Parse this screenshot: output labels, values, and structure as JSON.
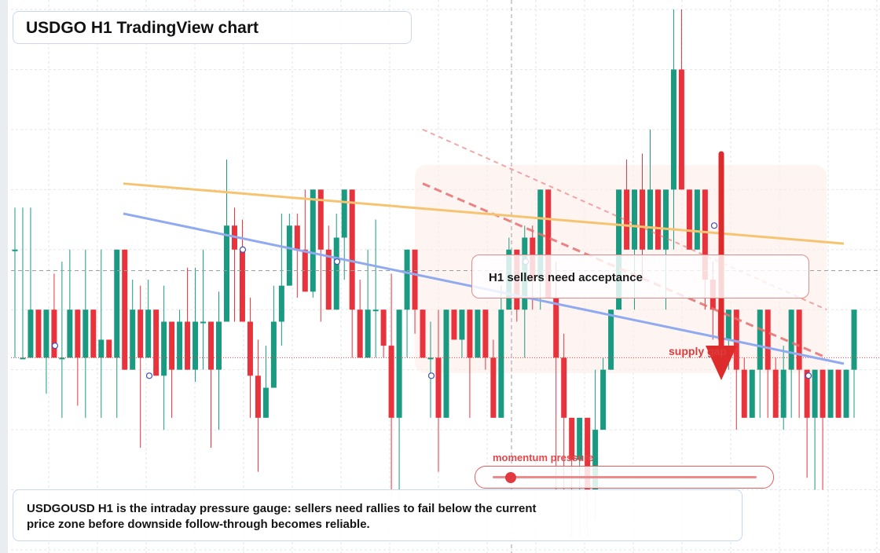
{
  "title": "USDGO H1 TradingView chart",
  "annotations": {
    "acceptance": "H1 sellers need acceptance",
    "supply": "supply gap",
    "momentum_label": "momentum pressure",
    "momentum_level": 0.07,
    "summary": "USDGOUSD H1 is the intraday pressure gauge: sellers need rallies to fail below the current price zone before downside follow-through becomes reliable."
  },
  "colors": {
    "up": "#1a9a80",
    "down": "#e8323c",
    "ma_fast": "#f6c471",
    "ma_slow": "#90aaf0",
    "resistance": "#e86f6f",
    "arrow": "#dd2a2a"
  },
  "chart_data": {
    "type": "candlestick",
    "title": "USDGO H1 TradingView chart",
    "note": "",
    "y_ticks": [],
    "ylim": [
      0,
      9
    ],
    "candles": [
      [
        5.0,
        5.0,
        3.2,
        5.7
      ],
      [
        3.2,
        3.2,
        3.2,
        5.7
      ],
      [
        3.2,
        4.0,
        3.2,
        5.7
      ],
      [
        4.0,
        3.2,
        3.2,
        4.0
      ],
      [
        3.2,
        4.0,
        2.6,
        4.0
      ],
      [
        4.0,
        3.2,
        3.2,
        4.6
      ],
      [
        3.2,
        3.2,
        2.2,
        4.8
      ],
      [
        3.2,
        4.0,
        3.2,
        5.0
      ],
      [
        4.0,
        3.2,
        2.4,
        4.0
      ],
      [
        3.2,
        4.0,
        2.2,
        5.0
      ],
      [
        4.0,
        3.2,
        3.2,
        4.0
      ],
      [
        3.2,
        3.5,
        2.2,
        5.0
      ],
      [
        3.5,
        3.2,
        3.2,
        3.5
      ],
      [
        3.2,
        5.0,
        2.2,
        5.0
      ],
      [
        5.0,
        3.0,
        3.0,
        5.0
      ],
      [
        3.0,
        4.0,
        3.0,
        4.5
      ],
      [
        4.0,
        3.2,
        1.7,
        4.4
      ],
      [
        3.2,
        4.0,
        3.2,
        4.5
      ],
      [
        4.0,
        2.9,
        2.9,
        4.0
      ],
      [
        2.9,
        3.8,
        2.0,
        4.4
      ],
      [
        3.8,
        3.0,
        2.2,
        3.8
      ],
      [
        3.0,
        3.8,
        3.0,
        4.0
      ],
      [
        3.8,
        3.0,
        3.0,
        4.7
      ],
      [
        3.0,
        3.8,
        2.8,
        4.7
      ],
      [
        3.8,
        3.8,
        3.0,
        5.0
      ],
      [
        3.8,
        3.0,
        1.7,
        3.8
      ],
      [
        3.0,
        3.8,
        2.0,
        4.3
      ],
      [
        3.8,
        5.4,
        3.8,
        6.5
      ],
      [
        5.4,
        5.0,
        3.8,
        5.7
      ],
      [
        5.0,
        3.8,
        3.8,
        5.5
      ],
      [
        3.8,
        2.9,
        2.2,
        4.2
      ],
      [
        2.9,
        2.2,
        1.3,
        3.5
      ],
      [
        2.2,
        2.7,
        2.2,
        3.4
      ],
      [
        2.7,
        3.8,
        2.7,
        4.4
      ],
      [
        3.8,
        4.4,
        3.4,
        5.6
      ],
      [
        4.4,
        5.4,
        4.4,
        5.6
      ],
      [
        5.4,
        5.0,
        4.2,
        5.6
      ],
      [
        5.0,
        4.3,
        4.3,
        6.0
      ],
      [
        4.3,
        6.0,
        4.2,
        6.0
      ],
      [
        6.0,
        5.0,
        3.8,
        6.0
      ],
      [
        5.0,
        4.0,
        4.0,
        5.4
      ],
      [
        4.0,
        5.2,
        4.0,
        5.6
      ],
      [
        5.2,
        6.0,
        4.5,
        6.0
      ],
      [
        6.0,
        4.0,
        3.2,
        6.0
      ],
      [
        4.0,
        3.2,
        3.2,
        4.5
      ],
      [
        3.2,
        4.0,
        3.2,
        5.0
      ],
      [
        4.0,
        4.0,
        3.2,
        5.5
      ],
      [
        4.0,
        3.4,
        3.2,
        4.0
      ],
      [
        3.4,
        2.2,
        0.9,
        4.6
      ],
      [
        2.2,
        4.0,
        0.7,
        4.0
      ],
      [
        4.0,
        5.0,
        3.2,
        5.0
      ],
      [
        5.0,
        4.0,
        3.6,
        5.0
      ],
      [
        4.0,
        3.2,
        3.2,
        4.0
      ],
      [
        3.2,
        3.2,
        2.2,
        3.8
      ],
      [
        3.2,
        2.2,
        1.3,
        4.0
      ],
      [
        2.2,
        4.0,
        2.2,
        4.0
      ],
      [
        4.0,
        3.5,
        3.5,
        4.0
      ],
      [
        3.5,
        4.0,
        3.2,
        4.0
      ],
      [
        4.0,
        3.2,
        2.2,
        4.0
      ],
      [
        3.2,
        4.0,
        3.2,
        4.0
      ],
      [
        4.0,
        3.2,
        3.0,
        4.0
      ],
      [
        3.2,
        2.2,
        2.2,
        3.5
      ],
      [
        2.2,
        4.0,
        2.2,
        4.4
      ],
      [
        4.0,
        5.0,
        4.0,
        5.2
      ],
      [
        5.0,
        4.0,
        3.8,
        5.0
      ],
      [
        4.0,
        5.2,
        3.2,
        5.4
      ],
      [
        5.2,
        4.5,
        4.0,
        5.4
      ],
      [
        4.5,
        6.0,
        4.0,
        6.0
      ],
      [
        6.0,
        4.2,
        4.2,
        6.0
      ],
      [
        4.2,
        3.2,
        1.0,
        4.8
      ],
      [
        3.2,
        2.2,
        1.0,
        3.6
      ],
      [
        2.2,
        1.5,
        0.2,
        2.2
      ],
      [
        1.5,
        2.2,
        0.2,
        2.2
      ],
      [
        2.2,
        1.0,
        0.2,
        2.2
      ],
      [
        1.0,
        2.0,
        0.5,
        3.0
      ],
      [
        2.0,
        3.0,
        2.0,
        3.2
      ],
      [
        3.0,
        4.0,
        3.0,
        4.0
      ],
      [
        4.0,
        6.0,
        4.0,
        6.0
      ],
      [
        6.0,
        5.0,
        5.0,
        6.5
      ],
      [
        5.0,
        6.0,
        4.0,
        6.0
      ],
      [
        6.0,
        5.0,
        4.5,
        6.6
      ],
      [
        5.0,
        6.0,
        5.0,
        7.0
      ],
      [
        6.0,
        5.0,
        5.0,
        6.0
      ],
      [
        5.0,
        6.0,
        4.0,
        6.0
      ],
      [
        6.0,
        8.0,
        5.0,
        9.0
      ],
      [
        8.0,
        6.0,
        6.0,
        9.0
      ],
      [
        6.0,
        5.0,
        5.0,
        6.0
      ],
      [
        5.0,
        6.0,
        5.0,
        6.0
      ],
      [
        6.0,
        4.5,
        4.0,
        6.0
      ],
      [
        4.5,
        4.0,
        3.5,
        4.8
      ],
      [
        4.0,
        3.5,
        3.0,
        4.0
      ],
      [
        3.5,
        4.0,
        3.0,
        4.0
      ],
      [
        4.0,
        3.0,
        2.0,
        4.0
      ],
      [
        3.0,
        2.2,
        2.2,
        3.2
      ],
      [
        2.2,
        3.0,
        2.2,
        3.0
      ],
      [
        3.0,
        4.0,
        2.2,
        4.0
      ],
      [
        4.0,
        3.0,
        2.2,
        4.0
      ],
      [
        3.0,
        2.2,
        2.2,
        3.2
      ],
      [
        2.2,
        3.0,
        2.0,
        3.4
      ],
      [
        3.0,
        4.0,
        2.2,
        4.0
      ],
      [
        4.0,
        3.0,
        2.2,
        4.0
      ],
      [
        3.0,
        2.2,
        1.2,
        3.0
      ],
      [
        2.2,
        3.0,
        1.0,
        3.0
      ],
      [
        3.0,
        2.2,
        1.0,
        3.0
      ],
      [
        2.2,
        3.0,
        2.2,
        3.0
      ],
      [
        3.0,
        2.2,
        2.2,
        3.0
      ],
      [
        2.2,
        3.0,
        2.2,
        3.0
      ],
      [
        3.0,
        4.0,
        2.2,
        4.0
      ]
    ],
    "moving_averages": [
      {
        "name": "",
        "values": [
          6.1,
          5.1
        ]
      },
      {
        "name": "",
        "values": [
          5.6,
          3.1
        ]
      }
    ]
  }
}
